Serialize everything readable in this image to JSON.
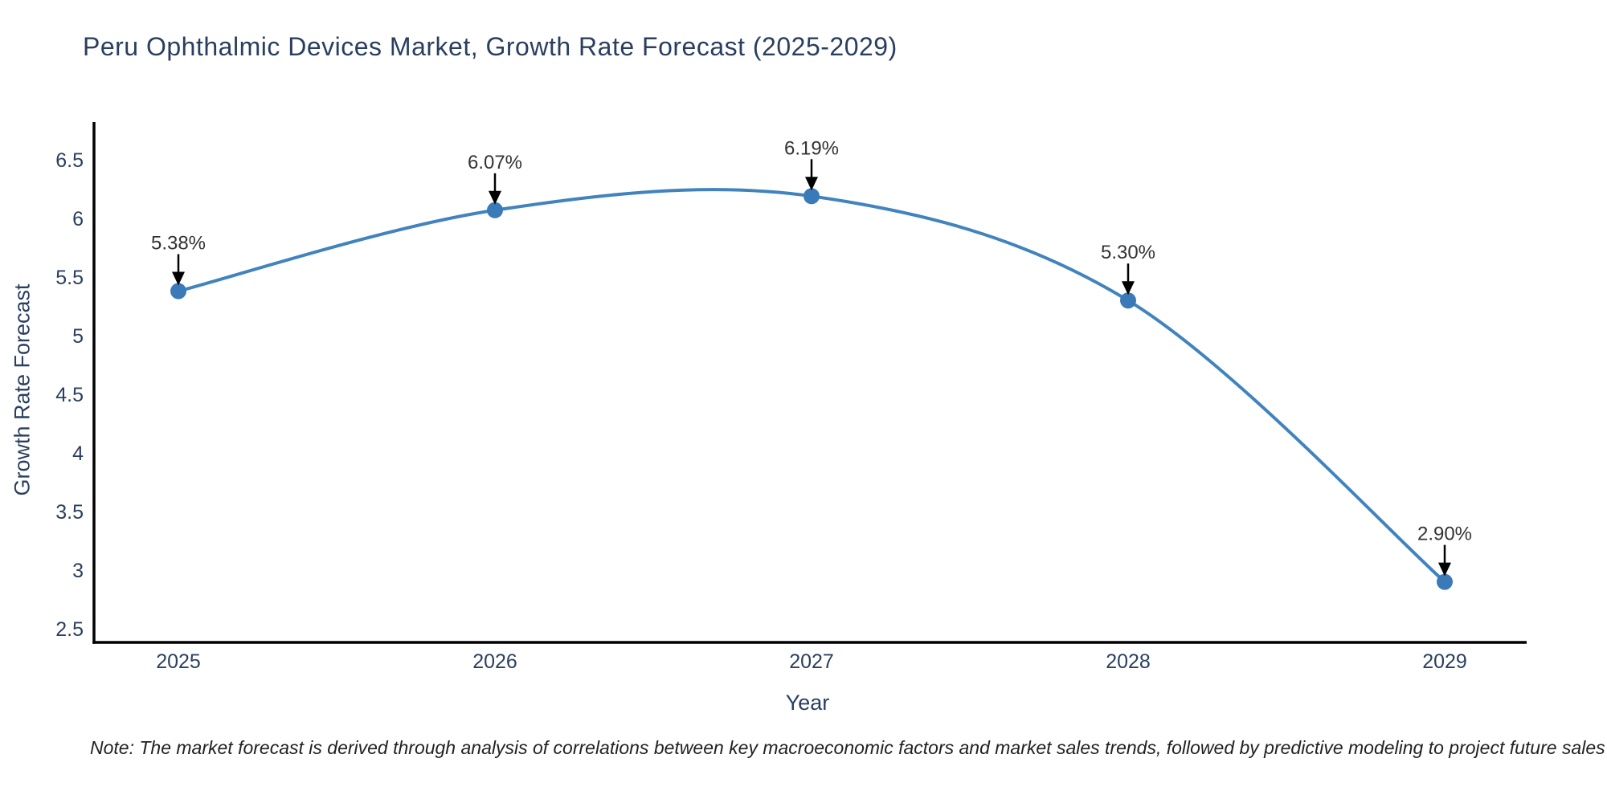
{
  "title": "Peru Ophthalmic Devices Market, Growth Rate Forecast (2025-2029)",
  "note": "Note: The market forecast is derived through analysis of correlations between key macroeconomic factors and market sales trends, followed by predictive modeling to project future sales",
  "colors": {
    "background": "#ffffff",
    "title_text": "#2a3f5f",
    "axis_text": "#2a3f5f",
    "axis_line": "#000000",
    "line": "#4183bd",
    "marker": "#3a7ab8",
    "annotation_text": "#333333",
    "annotation_arrow": "#000000",
    "note_text": "#222222"
  },
  "chart_data": {
    "type": "line",
    "title": "Peru Ophthalmic Devices Market, Growth Rate Forecast (2025-2029)",
    "xlabel": "Year",
    "ylabel": "Growth Rate Forecast",
    "x": [
      2025,
      2026,
      2027,
      2028,
      2029
    ],
    "values": [
      5.38,
      6.07,
      6.19,
      5.3,
      2.9
    ],
    "point_labels": [
      "5.38%",
      "6.07%",
      "6.19%",
      "5.30%",
      "2.90%"
    ],
    "ylim": [
      2.5,
      6.5
    ],
    "yticks": [
      2.5,
      3,
      3.5,
      4,
      4.5,
      5,
      5.5,
      6,
      6.5
    ],
    "line_shape": "spline",
    "grid": false,
    "legend_position": "none",
    "markers": true,
    "annotations_have_arrows": true
  }
}
